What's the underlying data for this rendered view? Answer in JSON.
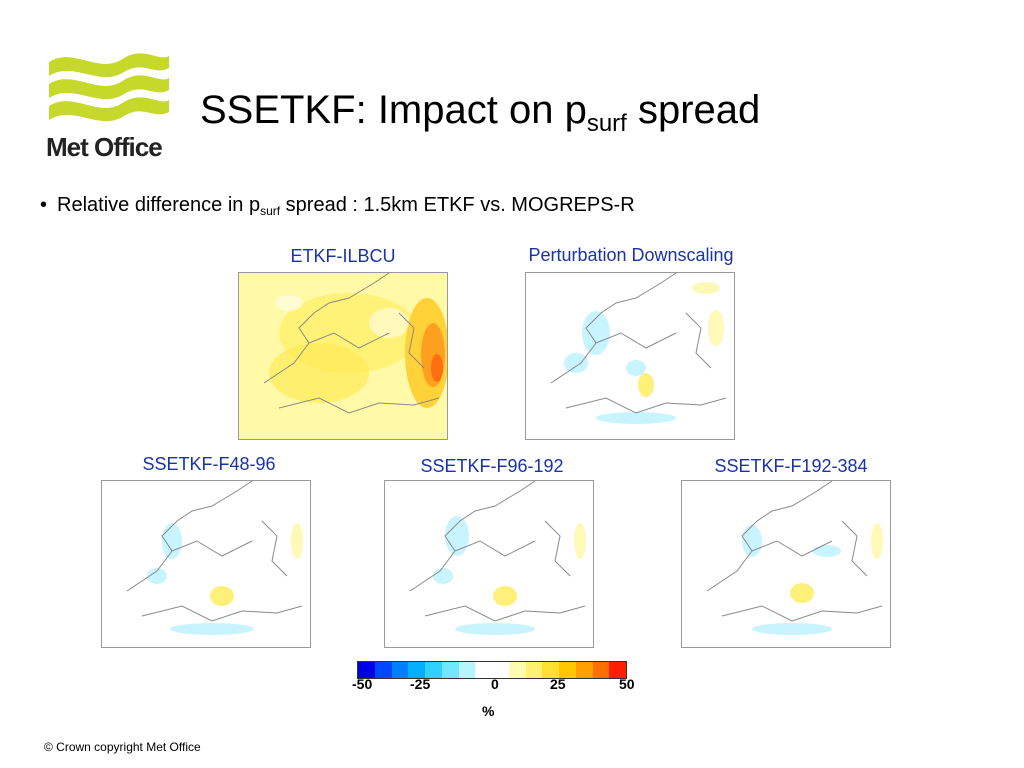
{
  "header": {
    "logo_text": "Met Office",
    "title_main": "SSETKF: Impact on p",
    "title_sub": "surf",
    "title_tail": " spread"
  },
  "bullet": {
    "pre": "Relative difference in p",
    "sub": "surf",
    "post": " spread : 1.5km ETKF vs. MOGREPS-R"
  },
  "panels": [
    {
      "label": "ETKF-ILBCU"
    },
    {
      "label": "Perturbation Downscaling"
    },
    {
      "label": "SSETKF-F48-96"
    },
    {
      "label": "SSETKF-F96-192"
    },
    {
      "label": "SSETKF-F192-384"
    }
  ],
  "colorbar": {
    "colors": [
      "#0000e6",
      "#0046ff",
      "#0080ff",
      "#00b0ff",
      "#30d0ff",
      "#70e6ff",
      "#b4f5ff",
      "#ffffff",
      "#ffffff",
      "#fffab4",
      "#fff070",
      "#ffe030",
      "#ffc800",
      "#ffa000",
      "#ff6e00",
      "#ff1e00"
    ],
    "ticks": [
      "-50",
      "-25",
      "0",
      "25",
      "50"
    ],
    "unit": "%"
  },
  "footer": "© Crown copyright   Met Office",
  "colors": {
    "label_blue": "#1a33a8",
    "logo_green": "#c6d92b"
  }
}
